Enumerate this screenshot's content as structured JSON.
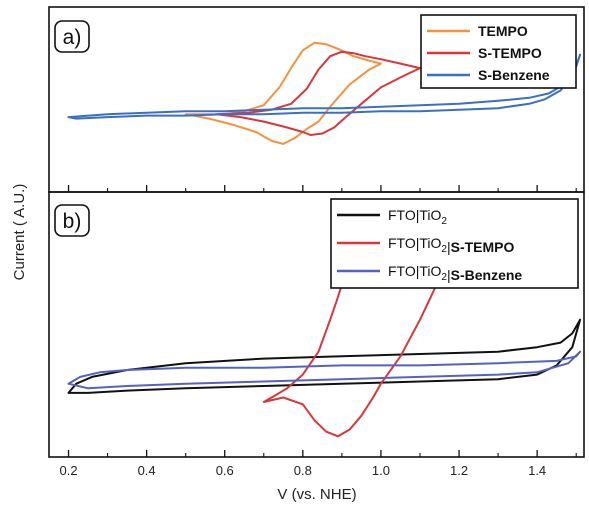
{
  "chart_data": [
    {
      "panel": "a)",
      "type": "line",
      "xlim": [
        0.15,
        1.52
      ],
      "ylim": [
        0,
        1
      ],
      "legend_position": "top-right",
      "series": [
        {
          "name": "TEMPO",
          "color": "#f5923e",
          "x": [
            0.5,
            0.6,
            0.65,
            0.7,
            0.74,
            0.77,
            0.8,
            0.83,
            0.86,
            0.89,
            0.93,
            0.97,
            1.0,
            0.97,
            0.92,
            0.87,
            0.84,
            0.81,
            0.78,
            0.75,
            0.72,
            0.68,
            0.62,
            0.56,
            0.5
          ],
          "y": [
            0.4,
            0.4,
            0.42,
            0.46,
            0.58,
            0.71,
            0.83,
            0.88,
            0.87,
            0.84,
            0.79,
            0.76,
            0.74,
            0.7,
            0.6,
            0.45,
            0.35,
            0.3,
            0.24,
            0.2,
            0.22,
            0.28,
            0.33,
            0.37,
            0.4
          ]
        },
        {
          "name": "S-TEMPO",
          "color": "#d9363a",
          "x": [
            0.58,
            0.66,
            0.72,
            0.77,
            0.81,
            0.84,
            0.87,
            0.9,
            0.93,
            0.96,
            1.0,
            1.05,
            1.1,
            1.06,
            1.0,
            0.95,
            0.91,
            0.88,
            0.85,
            0.82,
            0.8,
            0.76,
            0.7,
            0.64,
            0.58
          ],
          "y": [
            0.4,
            0.41,
            0.43,
            0.47,
            0.57,
            0.7,
            0.79,
            0.82,
            0.81,
            0.79,
            0.77,
            0.74,
            0.71,
            0.66,
            0.58,
            0.47,
            0.38,
            0.31,
            0.27,
            0.26,
            0.28,
            0.31,
            0.35,
            0.38,
            0.4
          ]
        },
        {
          "name": "S-Benzene",
          "color": "#3a6fc4",
          "x": [
            0.2,
            0.3,
            0.4,
            0.5,
            0.6,
            0.7,
            0.8,
            0.9,
            1.0,
            1.1,
            1.2,
            1.3,
            1.38,
            1.43,
            1.47,
            1.5,
            1.51,
            1.49,
            1.46,
            1.42,
            1.38,
            1.3,
            1.2,
            1.1,
            1.0,
            0.9,
            0.8,
            0.7,
            0.6,
            0.5,
            0.4,
            0.3,
            0.22,
            0.2
          ],
          "y": [
            0.38,
            0.4,
            0.41,
            0.42,
            0.42,
            0.43,
            0.44,
            0.44,
            0.45,
            0.46,
            0.47,
            0.49,
            0.51,
            0.54,
            0.6,
            0.72,
            0.8,
            0.66,
            0.56,
            0.5,
            0.47,
            0.44,
            0.43,
            0.42,
            0.42,
            0.41,
            0.41,
            0.4,
            0.4,
            0.39,
            0.39,
            0.38,
            0.37,
            0.38
          ]
        }
      ]
    },
    {
      "panel": "b)",
      "type": "line",
      "xlim": [
        0.15,
        1.52
      ],
      "ylim": [
        0,
        1
      ],
      "legend_position": "top-right",
      "series": [
        {
          "name_parts": [
            [
              "FTO|TiO",
              false
            ],
            [
              "2",
              false,
              "sub"
            ]
          ],
          "color": "#111111",
          "x": [
            0.2,
            0.22,
            0.26,
            0.35,
            0.5,
            0.7,
            0.9,
            1.1,
            1.3,
            1.4,
            1.46,
            1.49,
            1.51,
            1.49,
            1.45,
            1.4,
            1.3,
            1.1,
            0.9,
            0.7,
            0.5,
            0.35,
            0.25,
            0.2
          ],
          "y": [
            0.2,
            0.24,
            0.27,
            0.3,
            0.33,
            0.35,
            0.36,
            0.37,
            0.38,
            0.4,
            0.42,
            0.46,
            0.52,
            0.4,
            0.32,
            0.28,
            0.26,
            0.25,
            0.24,
            0.23,
            0.22,
            0.21,
            0.2,
            0.2
          ]
        },
        {
          "name_parts": [
            [
              "FTO|TiO",
              false
            ],
            [
              "2",
              false,
              "sub"
            ],
            [
              "|",
              false
            ],
            [
              "S-TEMPO",
              true
            ]
          ],
          "color": "#d9363a",
          "x": [
            0.7,
            0.72,
            0.76,
            0.8,
            0.84,
            0.87,
            0.89,
            0.91,
            0.94,
            0.97,
            1.0,
            1.03,
            1.06,
            1.1,
            1.15,
            1.18,
            1.2,
            1.19,
            1.15,
            1.1,
            1.05,
            1.0,
            0.98,
            0.95,
            0.92,
            0.89,
            0.86,
            0.83,
            0.8,
            0.75,
            0.7
          ],
          "y": [
            0.16,
            0.18,
            0.22,
            0.28,
            0.38,
            0.52,
            0.62,
            0.73,
            0.84,
            0.93,
            0.98,
            1.0,
            0.99,
            0.98,
            0.96,
            0.96,
            1.0,
            0.9,
            0.7,
            0.52,
            0.36,
            0.24,
            0.18,
            0.1,
            0.04,
            0.01,
            0.03,
            0.08,
            0.15,
            0.18,
            0.16
          ]
        },
        {
          "name_parts": [
            [
              "FTO|TiO",
              false
            ],
            [
              "2",
              false,
              "sub"
            ],
            [
              "|",
              false
            ],
            [
              "S-Benzene",
              true
            ]
          ],
          "color": "#5561c4",
          "x": [
            0.2,
            0.23,
            0.28,
            0.35,
            0.5,
            0.7,
            0.9,
            1.1,
            1.3,
            1.45,
            1.5,
            1.51,
            1.48,
            1.4,
            1.3,
            1.1,
            0.9,
            0.7,
            0.5,
            0.35,
            0.25,
            0.2
          ],
          "y": [
            0.24,
            0.27,
            0.29,
            0.3,
            0.31,
            0.31,
            0.32,
            0.32,
            0.33,
            0.34,
            0.36,
            0.38,
            0.33,
            0.29,
            0.28,
            0.27,
            0.26,
            0.25,
            0.24,
            0.23,
            0.22,
            0.24
          ]
        }
      ]
    }
  ],
  "axes": {
    "xlabel": "V (vs. NHE)",
    "ylabel": "Current ( A.U.)",
    "xticks": [
      0.2,
      0.4,
      0.6,
      0.8,
      1.0,
      1.2,
      1.4
    ],
    "xtick_labels": [
      "0.2",
      "0.4",
      "0.6",
      "0.8",
      "1.0",
      "1.2",
      "1.4"
    ]
  },
  "legend_a": {
    "labels": [
      "TEMPO",
      "S-TEMPO",
      "S-Benzene"
    ]
  }
}
